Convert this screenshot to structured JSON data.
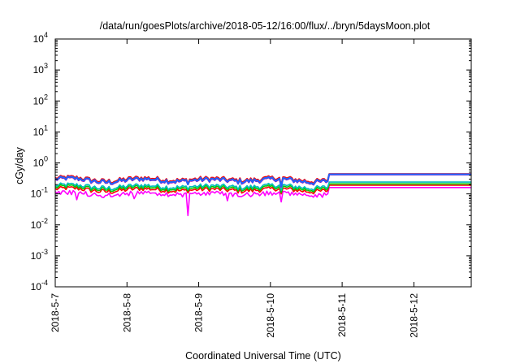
{
  "chart_data": {
    "type": "line",
    "title": "/data/run/goesPlots/archive/2018-05-12/16:00/flux/../bryn/5daysMoon.plot",
    "xlabel": "Coordinated Universal Time (UTC)",
    "ylabel": "cGy/day",
    "yscale": "log",
    "ylim": [
      0.0001,
      10000
    ],
    "x_unit": "days",
    "xlim": [
      0,
      5.8
    ],
    "x_ticks": [
      {
        "pos": 0,
        "label": "2018-5-7"
      },
      {
        "pos": 1,
        "label": "2018-5-8"
      },
      {
        "pos": 2,
        "label": "2018-5-9"
      },
      {
        "pos": 3,
        "label": "2018-5-10"
      },
      {
        "pos": 4,
        "label": "2018-5-11"
      },
      {
        "pos": 5,
        "label": "2018-5-12"
      }
    ],
    "y_ticks": [
      {
        "value": 0.0001,
        "base": "10",
        "exp": "-4"
      },
      {
        "value": 0.001,
        "base": "10",
        "exp": "-3"
      },
      {
        "value": 0.01,
        "base": "10",
        "exp": "-2"
      },
      {
        "value": 0.1,
        "base": "10",
        "exp": "-1"
      },
      {
        "value": 1,
        "base": "10",
        "exp": "0"
      },
      {
        "value": 10,
        "base": "10",
        "exp": "1"
      },
      {
        "value": 100,
        "base": "10",
        "exp": "2"
      },
      {
        "value": 1000,
        "base": "10",
        "exp": "3"
      },
      {
        "value": 10000,
        "base": "10",
        "exp": "4"
      }
    ],
    "grid": false,
    "legend": "none",
    "data_end_day": 3.8,
    "series": [
      {
        "color": "#ff00ff",
        "base": 0.105,
        "amp": 0.12,
        "flat": 0.16,
        "dips": [
          [
            0.3,
            0.065
          ],
          [
            1.1,
            0.07
          ],
          [
            1.85,
            0.02
          ],
          [
            2.4,
            0.06
          ],
          [
            3.15,
            0.055
          ],
          [
            4.1,
            0.055
          ],
          [
            4.4,
            0.06
          ]
        ]
      },
      {
        "color": "#ff0000",
        "base": 0.135,
        "amp": 0.12,
        "flat": 0.19,
        "dips": [
          [
            1.85,
            0.12
          ],
          [
            3.15,
            0.1
          ]
        ]
      },
      {
        "color": "#00cc00",
        "base": 0.155,
        "amp": 0.12,
        "flat": 0.21,
        "dips": [
          [
            1.85,
            0.13
          ],
          [
            3.15,
            0.11
          ]
        ]
      },
      {
        "color": "#00bbbb",
        "base": 0.175,
        "amp": 0.12,
        "flat": 0.24,
        "dips": [
          [
            1.85,
            0.15
          ],
          [
            3.15,
            0.13
          ]
        ]
      },
      {
        "color": "#aa00aa",
        "base": 0.27,
        "amp": 0.14,
        "flat": 0.42,
        "dips": [
          [
            1.85,
            0.2
          ],
          [
            3.15,
            0.17
          ]
        ]
      },
      {
        "color": "#ff0000",
        "base": 0.3,
        "amp": 0.14,
        "flat": 0.44,
        "dips": [
          [
            1.85,
            0.21
          ],
          [
            3.15,
            0.19
          ]
        ]
      },
      {
        "color": "#1e64ff",
        "base": 0.28,
        "amp": 0.14,
        "flat": 0.43,
        "dips": [
          [
            1.85,
            0.2
          ],
          [
            3.15,
            0.18
          ]
        ]
      }
    ]
  }
}
